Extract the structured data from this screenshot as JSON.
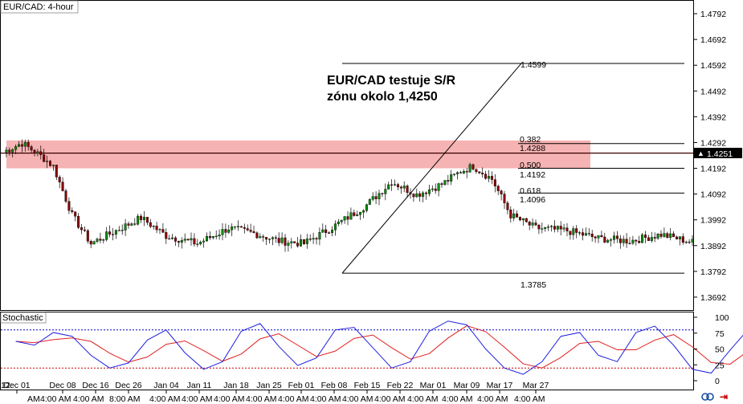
{
  "window_title": "EUR/CAD: 4-hour",
  "annotation": {
    "line1": "EUR/CAD testuje S/R",
    "line2": "zónu okolo 1,4250"
  },
  "current_price": "1.4251",
  "colors": {
    "bull": "#0a8a0a",
    "bear": "#8b0000",
    "zone": "#f08080",
    "stoch_main": "#2020e0",
    "stoch_signal": "#e02020",
    "stoch_level": "#0000cc",
    "stoch_level_low": "#cc0000"
  },
  "chart_data": [
    {
      "type": "candlestick",
      "title": "EUR/CAD: 4-hour",
      "ylim": [
        1.3642,
        1.4842
      ],
      "y_ticks": [
        "1.4792",
        "1.4692",
        "1.4592",
        "1.4492",
        "1.4392",
        "1.4292",
        "1.4192",
        "1.4092",
        "1.3992",
        "1.3892",
        "1.3792",
        "1.3692"
      ],
      "x_ticks": [
        "Dec 01",
        "Dec 08",
        "Dec 16",
        "Dec 26",
        "Jan 04",
        "Jan 11",
        "Jan 18",
        "Jan 25",
        "Feb 01",
        "Feb 08",
        "Feb 15",
        "Feb 22",
        "Mar 01",
        "Mar 09",
        "Mar 17",
        "Mar 27"
      ],
      "x_tick_left_fragment": "12:",
      "x_subticks": [
        "AM",
        "4:00 AM",
        "4:00 AM",
        "8:00 AM",
        "4:00 AM",
        "4:00 AM",
        "4:00 AM",
        "4:00 AM",
        "4:00 AM",
        "4:00 AM",
        "4:00 AM",
        "4:00 AM",
        "4:00 AM",
        "4:00 AM",
        "4:00 AM",
        "4:00 AM"
      ],
      "sr_zone": [
        1.4192,
        1.43
      ],
      "sr_line": 1.4251,
      "fibonacci": {
        "high": 1.4599,
        "low": 1.3785,
        "levels": [
          {
            "ratio": "0.382",
            "price": 1.4288
          },
          {
            "ratio": "0.500",
            "price": 1.4192
          },
          {
            "ratio": "0.618",
            "price": 1.4096
          }
        ],
        "labels": {
          "high": "1.4599",
          "r382": "0.382",
          "p382": "1.4288",
          "r500": "0.500",
          "p500": "1.4192",
          "r618": "0.618",
          "p618": "1.4096",
          "low": "1.3785"
        }
      },
      "anchors": [
        [
          0,
          1.4255
        ],
        [
          6,
          1.429
        ],
        [
          12,
          1.424
        ],
        [
          16,
          1.42
        ],
        [
          22,
          1.401
        ],
        [
          28,
          1.39
        ],
        [
          36,
          1.395
        ],
        [
          44,
          1.4
        ],
        [
          52,
          1.393
        ],
        [
          62,
          1.39
        ],
        [
          72,
          1.396
        ],
        [
          80,
          1.394
        ],
        [
          88,
          1.391
        ],
        [
          96,
          1.39
        ],
        [
          106,
          1.397
        ],
        [
          116,
          1.405
        ],
        [
          124,
          1.414
        ],
        [
          132,
          1.409
        ],
        [
          140,
          1.413
        ],
        [
          146,
          1.418
        ],
        [
          150,
          1.42
        ],
        [
          156,
          1.415
        ],
        [
          162,
          1.401
        ],
        [
          170,
          1.396
        ],
        [
          180,
          1.395
        ],
        [
          190,
          1.392
        ],
        [
          200,
          1.391
        ],
        [
          210,
          1.3935
        ],
        [
          220,
          1.3905
        ],
        [
          230,
          1.388
        ],
        [
          240,
          1.395
        ],
        [
          248,
          1.398
        ],
        [
          256,
          1.402
        ],
        [
          264,
          1.409
        ],
        [
          270,
          1.419
        ],
        [
          276,
          1.426
        ],
        [
          280,
          1.427
        ],
        [
          286,
          1.423
        ],
        [
          292,
          1.41
        ],
        [
          300,
          1.406
        ],
        [
          308,
          1.4
        ],
        [
          316,
          1.396
        ],
        [
          324,
          1.401
        ],
        [
          332,
          1.408
        ],
        [
          340,
          1.406
        ],
        [
          348,
          1.399
        ],
        [
          356,
          1.396
        ],
        [
          364,
          1.402
        ],
        [
          372,
          1.406
        ],
        [
          380,
          1.408
        ],
        [
          388,
          1.405
        ],
        [
          396,
          1.399
        ],
        [
          404,
          1.39
        ],
        [
          410,
          1.384
        ],
        [
          416,
          1.38
        ],
        [
          424,
          1.38
        ],
        [
          430,
          1.382
        ],
        [
          438,
          1.392
        ],
        [
          446,
          1.389
        ],
        [
          454,
          1.386
        ],
        [
          462,
          1.382
        ],
        [
          470,
          1.382
        ],
        [
          478,
          1.383
        ],
        [
          486,
          1.393
        ],
        [
          494,
          1.404
        ],
        [
          502,
          1.406
        ],
        [
          510,
          1.41
        ],
        [
          518,
          1.417
        ],
        [
          526,
          1.421
        ],
        [
          534,
          1.42
        ],
        [
          542,
          1.423
        ],
        [
          550,
          1.428
        ],
        [
          558,
          1.436
        ],
        [
          564,
          1.433
        ],
        [
          570,
          1.431
        ],
        [
          578,
          1.427
        ],
        [
          586,
          1.428
        ],
        [
          594,
          1.432
        ],
        [
          602,
          1.435
        ],
        [
          610,
          1.438
        ],
        [
          618,
          1.436
        ],
        [
          626,
          1.439
        ],
        [
          634,
          1.442
        ],
        [
          642,
          1.448
        ],
        [
          648,
          1.456
        ],
        [
          652,
          1.452
        ],
        [
          658,
          1.443
        ],
        [
          664,
          1.436
        ],
        [
          670,
          1.43
        ],
        [
          676,
          1.426
        ],
        [
          680,
          1.425
        ]
      ],
      "stochastic": {
        "title": "Stochastic",
        "ylim": [
          0,
          100
        ],
        "y_ticks": [
          "100",
          "75",
          "50",
          "25",
          "0"
        ],
        "levels": [
          80,
          20
        ],
        "points": [
          [
            4,
            62
          ],
          [
            10,
            56
          ],
          [
            16,
            76
          ],
          [
            22,
            70
          ],
          [
            28,
            40
          ],
          [
            34,
            20
          ],
          [
            40,
            28
          ],
          [
            46,
            64
          ],
          [
            52,
            80
          ],
          [
            58,
            44
          ],
          [
            64,
            18
          ],
          [
            70,
            30
          ],
          [
            76,
            78
          ],
          [
            82,
            90
          ],
          [
            88,
            54
          ],
          [
            94,
            24
          ],
          [
            100,
            36
          ],
          [
            106,
            80
          ],
          [
            112,
            84
          ],
          [
            118,
            52
          ],
          [
            124,
            20
          ],
          [
            130,
            30
          ],
          [
            136,
            78
          ],
          [
            142,
            94
          ],
          [
            148,
            88
          ],
          [
            154,
            50
          ],
          [
            160,
            20
          ],
          [
            166,
            10
          ],
          [
            172,
            30
          ],
          [
            178,
            70
          ],
          [
            184,
            76
          ],
          [
            190,
            40
          ],
          [
            196,
            30
          ],
          [
            202,
            76
          ],
          [
            208,
            86
          ],
          [
            214,
            56
          ],
          [
            220,
            18
          ],
          [
            226,
            12
          ],
          [
            232,
            48
          ],
          [
            238,
            82
          ],
          [
            244,
            60
          ],
          [
            250,
            20
          ],
          [
            256,
            12
          ],
          [
            262,
            50
          ],
          [
            268,
            88
          ],
          [
            274,
            98
          ],
          [
            280,
            96
          ],
          [
            286,
            92
          ],
          [
            292,
            54
          ],
          [
            298,
            16
          ],
          [
            304,
            24
          ],
          [
            310,
            72
          ],
          [
            316,
            80
          ],
          [
            322,
            44
          ],
          [
            328,
            18
          ],
          [
            334,
            36
          ],
          [
            340,
            80
          ],
          [
            346,
            82
          ],
          [
            352,
            40
          ],
          [
            358,
            14
          ],
          [
            364,
            22
          ],
          [
            370,
            68
          ],
          [
            376,
            80
          ],
          [
            382,
            52
          ],
          [
            388,
            26
          ],
          [
            394,
            22
          ],
          [
            400,
            12
          ],
          [
            406,
            8
          ],
          [
            412,
            10
          ],
          [
            418,
            8
          ],
          [
            424,
            40
          ],
          [
            430,
            90
          ],
          [
            436,
            96
          ],
          [
            442,
            62
          ],
          [
            448,
            20
          ],
          [
            454,
            10
          ],
          [
            460,
            40
          ],
          [
            466,
            74
          ],
          [
            472,
            62
          ],
          [
            478,
            30
          ],
          [
            484,
            26
          ],
          [
            490,
            80
          ],
          [
            496,
            96
          ],
          [
            502,
            80
          ],
          [
            508,
            54
          ],
          [
            514,
            80
          ],
          [
            520,
            96
          ],
          [
            526,
            70
          ],
          [
            532,
            40
          ],
          [
            538,
            16
          ],
          [
            544,
            26
          ],
          [
            550,
            64
          ],
          [
            556,
            80
          ],
          [
            562,
            94
          ],
          [
            568,
            92
          ],
          [
            574,
            62
          ],
          [
            580,
            24
          ],
          [
            586,
            10
          ],
          [
            592,
            30
          ],
          [
            598,
            80
          ],
          [
            604,
            74
          ],
          [
            610,
            32
          ],
          [
            616,
            60
          ],
          [
            622,
            94
          ],
          [
            628,
            90
          ],
          [
            634,
            60
          ],
          [
            640,
            24
          ],
          [
            646,
            42
          ],
          [
            652,
            82
          ],
          [
            658,
            76
          ],
          [
            664,
            26
          ],
          [
            670,
            10
          ],
          [
            676,
            6
          ],
          [
            680,
            10
          ]
        ]
      }
    }
  ]
}
